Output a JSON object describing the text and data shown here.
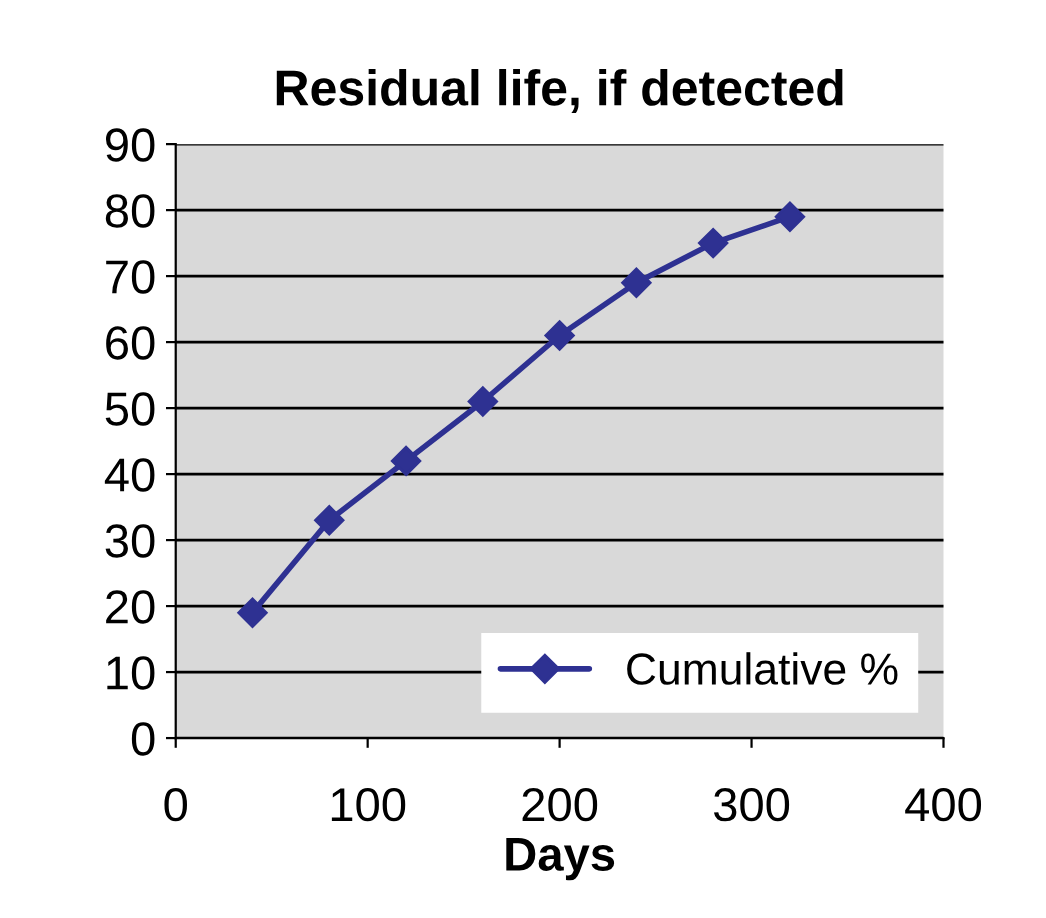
{
  "chart_data": {
    "type": "line",
    "title": "Residual life, if detected",
    "xlabel": "Days",
    "x": [
      40,
      80,
      120,
      160,
      200,
      240,
      280,
      320
    ],
    "series": [
      {
        "name": "Cumulative %",
        "color": "#2e3192",
        "values": [
          19,
          33,
          42,
          51,
          61,
          69,
          75,
          79
        ]
      }
    ],
    "xlim": [
      0,
      400
    ],
    "xticks": [
      0,
      100,
      200,
      300,
      400
    ],
    "ylim": [
      0,
      90
    ],
    "yticks": [
      0,
      10,
      20,
      30,
      40,
      50,
      60,
      70,
      80,
      90
    ],
    "grid": "y",
    "legend": "bottom right",
    "marker": "diamond",
    "line_style": "solid"
  }
}
